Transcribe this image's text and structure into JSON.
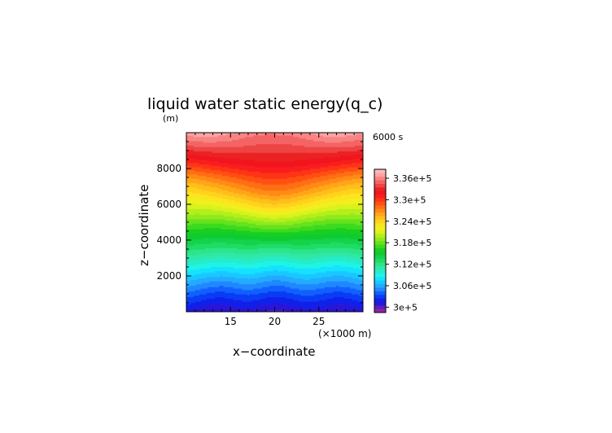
{
  "chart_data": {
    "type": "heatmap",
    "title": "liquid water static energy(q_c)",
    "y_unit": "(m)",
    "time_label": "6000 s",
    "xlabel": "x−coordinate",
    "ylabel": "z−coordinate",
    "x_unit": "(×1000 m)",
    "xlim": [
      10,
      30
    ],
    "ylim": [
      0,
      10000
    ],
    "x_ticks": [
      15,
      20,
      25
    ],
    "y_ticks": [
      2000,
      4000,
      6000,
      8000
    ],
    "colorbar": {
      "min": 298500,
      "max": 338500,
      "step": 1000,
      "labels": [
        "3.36e+5",
        "3.3e+5",
        "3.24e+5",
        "3.18e+5",
        "3.12e+5",
        "3.06e+5",
        "3e+5"
      ],
      "label_values": [
        336000,
        330000,
        324000,
        318000,
        312000,
        306000,
        300000
      ],
      "colors": [
        "#9a1fa3",
        "#5a1fc0",
        "#2a16d6",
        "#1020ea",
        "#0a3cf5",
        "#1160ff",
        "#1f88ff",
        "#24aaff",
        "#18c8ff",
        "#14e2ff",
        "#1ff4e6",
        "#26ecc8",
        "#2fe8a8",
        "#2ee48a",
        "#1fdc66",
        "#14d34a",
        "#0ecb30",
        "#18cf22",
        "#3cda1e",
        "#66e21c",
        "#90ea1c",
        "#b4ee1c",
        "#d8f21c",
        "#f0f01e",
        "#fce41e",
        "#ffd21c",
        "#ffbe1a",
        "#ffa618",
        "#ff8a16",
        "#ff6e14",
        "#ff5012",
        "#ff3416",
        "#f81e1e",
        "#f2141e",
        "#ea2222",
        "#ee4444",
        "#f46464",
        "#f88484",
        "#fca4a4",
        "#feb8b8"
      ]
    },
    "field": [
      [
        301500,
        301000,
        300600,
        300400,
        300400,
        300600,
        300800,
        300900,
        300700,
        300400,
        300200,
        300300,
        300600,
        300900,
        301000,
        300900,
        300700,
        300500,
        300400,
        300600,
        301000
      ],
      [
        303700,
        303400,
        303000,
        302700,
        302600,
        302800,
        303100,
        303200,
        303000,
        302700,
        302500,
        302600,
        302900,
        303200,
        303300,
        303100,
        302800,
        302600,
        302700,
        303000,
        303400
      ],
      [
        306400,
        306100,
        305700,
        305400,
        305300,
        305500,
        305800,
        306000,
        305800,
        305400,
        305200,
        305300,
        305700,
        306000,
        306000,
        305800,
        305500,
        305300,
        305400,
        305800,
        306200
      ],
      [
        309300,
        309100,
        308800,
        308600,
        308500,
        308600,
        308800,
        308900,
        308700,
        308400,
        308200,
        308300,
        308600,
        308800,
        308900,
        308700,
        308400,
        308300,
        308400,
        308700,
        309100
      ],
      [
        312300,
        312100,
        311900,
        311700,
        311600,
        311700,
        311900,
        312000,
        311800,
        311600,
        311500,
        311600,
        311800,
        312000,
        312000,
        311800,
        311600,
        311500,
        311600,
        311900,
        312200
      ],
      [
        315000,
        314900,
        314800,
        314700,
        314700,
        314800,
        315000,
        315100,
        315200,
        315300,
        315300,
        315300,
        315200,
        315100,
        315000,
        314900,
        314800,
        314800,
        314800,
        314900,
        315100
      ],
      [
        318000,
        317900,
        317800,
        317800,
        317900,
        318100,
        318400,
        318700,
        319100,
        319400,
        319500,
        319400,
        319100,
        318700,
        318400,
        318100,
        317900,
        317800,
        317800,
        317900,
        318100
      ],
      [
        320900,
        320900,
        321000,
        321100,
        321400,
        321800,
        322300,
        322800,
        323300,
        323700,
        323800,
        323700,
        323300,
        322800,
        322300,
        321800,
        321400,
        321100,
        321000,
        320900,
        321000
      ],
      [
        323400,
        323600,
        324000,
        324400,
        324900,
        325400,
        325900,
        326400,
        326900,
        327200,
        327300,
        327200,
        326900,
        326400,
        325900,
        325400,
        324900,
        324400,
        324000,
        323700,
        323600
      ],
      [
        326500,
        326800,
        327200,
        327600,
        328000,
        328400,
        328800,
        329200,
        329500,
        329700,
        329800,
        329700,
        329500,
        329200,
        328800,
        328400,
        328000,
        327600,
        327200,
        326900,
        326700
      ],
      [
        330400,
        330700,
        331000,
        331300,
        331500,
        331800,
        332000,
        332200,
        332300,
        332400,
        332400,
        332400,
        332300,
        332200,
        332000,
        331800,
        331500,
        331300,
        331000,
        330700,
        330500
      ],
      [
        334100,
        334300,
        334400,
        334500,
        334500,
        334500,
        334400,
        334300,
        334200,
        334200,
        334200,
        334200,
        334200,
        334300,
        334400,
        334500,
        334500,
        334500,
        334400,
        334300,
        334200
      ],
      [
        337000,
        337300,
        337400,
        337300,
        337000,
        336700,
        336300,
        336000,
        335800,
        335700,
        335700,
        335800,
        335900,
        336200,
        336600,
        337000,
        337300,
        337400,
        337200,
        336900,
        336700
      ]
    ]
  }
}
